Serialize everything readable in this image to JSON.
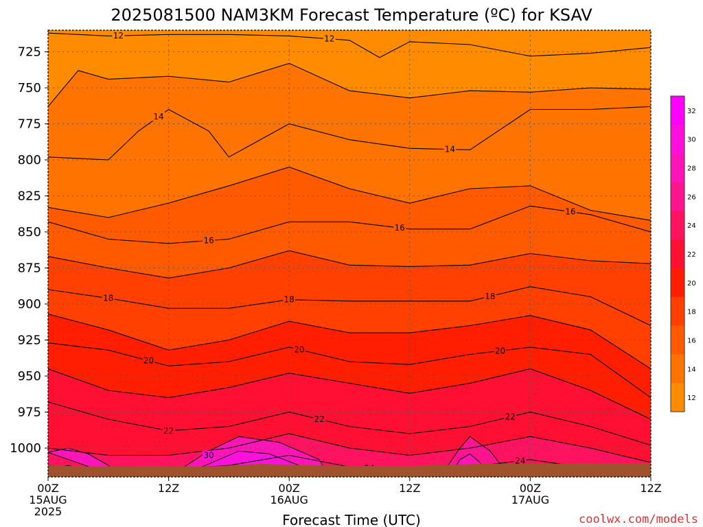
{
  "title": "2025081500 NAM3KM Forecast Temperature (ºC) for KSAV",
  "credit": "coolwx.com/models",
  "chart_data": {
    "type": "heatmap",
    "title": "2025081500 NAM3KM Forecast Temperature (ºC) for KSAV",
    "xlabel": "Forecast Time (UTC)",
    "ylabel": "",
    "y_axis": "pressure (hPa), inverted",
    "ylim": [
      1020,
      710
    ],
    "xlim_hours": [
      0,
      60
    ],
    "grid": true,
    "y_ticks": [
      "725",
      "750",
      "775",
      "800",
      "825",
      "850",
      "875",
      "900",
      "925",
      "950",
      "975",
      "1000"
    ],
    "x_ticks": [
      {
        "line1": "00Z",
        "line2": "15AUG",
        "line3": "2025",
        "hour": 0
      },
      {
        "line1": "12Z",
        "line2": "",
        "line3": "",
        "hour": 12
      },
      {
        "line1": "00Z",
        "line2": "16AUG",
        "line3": "",
        "hour": 24
      },
      {
        "line1": "12Z",
        "line2": "",
        "line3": "",
        "hour": 36
      },
      {
        "line1": "00Z",
        "line2": "17AUG",
        "line3": "",
        "hour": 48
      },
      {
        "line1": "12Z",
        "line2": "",
        "line3": "",
        "hour": 60
      }
    ],
    "colorbar": {
      "labels": [
        "12",
        "14",
        "16",
        "18",
        "20",
        "22",
        "24",
        "26",
        "28",
        "30",
        "32"
      ],
      "colors": [
        "#ff8c00",
        "#ff7300",
        "#ff5a00",
        "#ff4000",
        "#ff1e00",
        "#ff0f32",
        "#ff1260",
        "#ff1490",
        "#ff14b8",
        "#ff10dc",
        "#ff00ff"
      ]
    },
    "contour_interval": 1,
    "labeled_contours": [
      "12",
      "14",
      "16",
      "18",
      "20",
      "22",
      "24",
      "26",
      "30"
    ],
    "isotherms": [
      {
        "t": 12,
        "label": "12",
        "hours": [
          0,
          6,
          12,
          18,
          24,
          30,
          33,
          36,
          42,
          48,
          54,
          60
        ],
        "pressure": [
          712,
          714,
          713,
          713,
          714,
          717,
          729,
          718,
          720,
          728,
          726,
          722
        ]
      },
      {
        "t": 13,
        "label": "",
        "hours": [
          0,
          3,
          6,
          12,
          18,
          24,
          30,
          36,
          42,
          48,
          54,
          60
        ],
        "pressure": [
          763,
          738,
          744,
          742,
          746,
          733,
          752,
          757,
          752,
          753,
          750,
          751
        ]
      },
      {
        "t": 14,
        "label": "14",
        "hours": [
          0,
          6,
          9,
          12,
          16,
          18,
          24,
          30,
          36,
          42,
          48,
          54,
          60
        ],
        "pressure": [
          798,
          800,
          780,
          765,
          780,
          798,
          775,
          786,
          792,
          793,
          765,
          765,
          763
        ]
      },
      {
        "t": 15,
        "label": "",
        "hours": [
          0,
          6,
          12,
          18,
          24,
          30,
          36,
          42,
          48,
          54,
          60
        ],
        "pressure": [
          833,
          840,
          830,
          818,
          805,
          820,
          830,
          820,
          818,
          835,
          842
        ]
      },
      {
        "t": 16,
        "label": "16",
        "hours": [
          0,
          6,
          12,
          18,
          24,
          30,
          36,
          42,
          48,
          54,
          60
        ],
        "pressure": [
          843,
          855,
          858,
          855,
          843,
          843,
          848,
          848,
          832,
          838,
          850
        ]
      },
      {
        "t": 17,
        "label": "",
        "hours": [
          0,
          6,
          12,
          18,
          24,
          30,
          36,
          42,
          48,
          54,
          60
        ],
        "pressure": [
          867,
          875,
          882,
          875,
          863,
          873,
          874,
          873,
          865,
          870,
          872
        ]
      },
      {
        "t": 18,
        "label": "18",
        "hours": [
          0,
          6,
          12,
          18,
          24,
          30,
          36,
          42,
          48,
          54,
          60
        ],
        "pressure": [
          890,
          896,
          903,
          903,
          897,
          898,
          898,
          898,
          888,
          895,
          915
        ]
      },
      {
        "t": 19,
        "label": "",
        "hours": [
          0,
          6,
          12,
          18,
          24,
          30,
          36,
          42,
          48,
          54,
          60
        ],
        "pressure": [
          907,
          918,
          932,
          925,
          912,
          920,
          920,
          915,
          908,
          918,
          945
        ]
      },
      {
        "t": 20,
        "label": "20",
        "hours": [
          0,
          6,
          12,
          18,
          24,
          30,
          36,
          42,
          48,
          54,
          60
        ],
        "pressure": [
          927,
          932,
          943,
          940,
          930,
          940,
          942,
          935,
          930,
          935,
          965
        ]
      },
      {
        "t": 21,
        "label": "",
        "hours": [
          0,
          6,
          12,
          18,
          24,
          30,
          36,
          42,
          48,
          54,
          60
        ],
        "pressure": [
          945,
          960,
          965,
          958,
          948,
          955,
          962,
          955,
          945,
          960,
          980
        ]
      },
      {
        "t": 22,
        "label": "22",
        "hours": [
          0,
          6,
          12,
          18,
          24,
          30,
          36,
          42,
          48,
          54,
          60
        ],
        "pressure": [
          968,
          980,
          988,
          985,
          975,
          985,
          990,
          985,
          975,
          985,
          998
        ]
      },
      {
        "t": 23,
        "label": "",
        "hours": [
          0,
          6,
          12,
          18,
          24,
          30,
          36,
          42,
          48,
          54,
          60
        ],
        "pressure": [
          1000,
          1005,
          1005,
          1000,
          990,
          1000,
          1005,
          1000,
          992,
          1000,
          1010
        ]
      },
      {
        "t": 24,
        "label": "24",
        "hours": [
          0,
          6,
          12,
          18,
          24,
          30,
          36,
          42,
          48,
          54,
          60
        ],
        "pressure": [
          1012,
          1015,
          1015,
          1012,
          1005,
          1013,
          1016,
          1013,
          1008,
          1014,
          1018
        ]
      }
    ]
  }
}
